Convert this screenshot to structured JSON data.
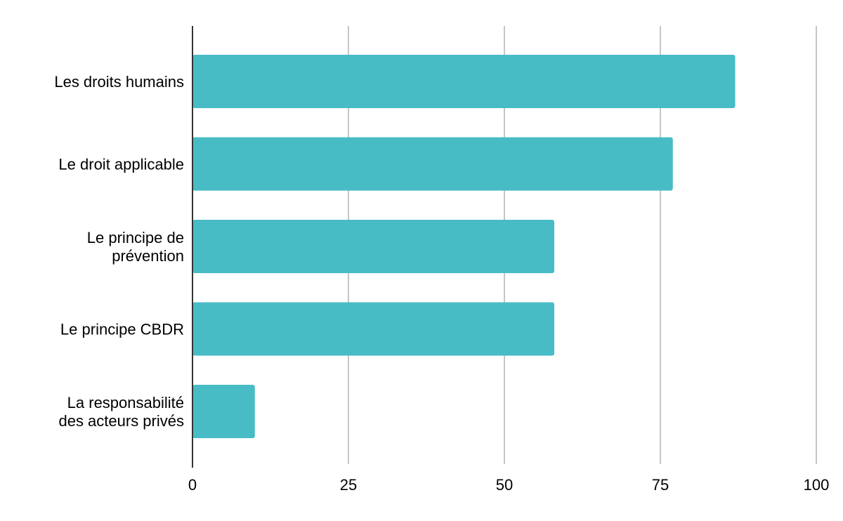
{
  "chart_data": {
    "type": "bar",
    "orientation": "horizontal",
    "title": "",
    "xlabel": "",
    "ylabel": "",
    "categories": [
      [
        "Les droits humains"
      ],
      [
        "Le droit applicable"
      ],
      [
        "Le principe de",
        "prévention"
      ],
      [
        "Le principe CBDR"
      ],
      [
        "La responsabilité",
        "des acteurs privés"
      ]
    ],
    "values": [
      87,
      77,
      58,
      58,
      10
    ],
    "xlim": [
      0,
      100
    ],
    "xticks": [
      0,
      25,
      50,
      75,
      100
    ],
    "xtick_labels": [
      "0",
      "25",
      "50",
      "75",
      "100"
    ],
    "grid": "vertical",
    "legend": "none",
    "colors": {
      "bar": "#48BCC5",
      "grid": "#C6C6C6",
      "axis": "#333333",
      "text": "#000000"
    }
  }
}
